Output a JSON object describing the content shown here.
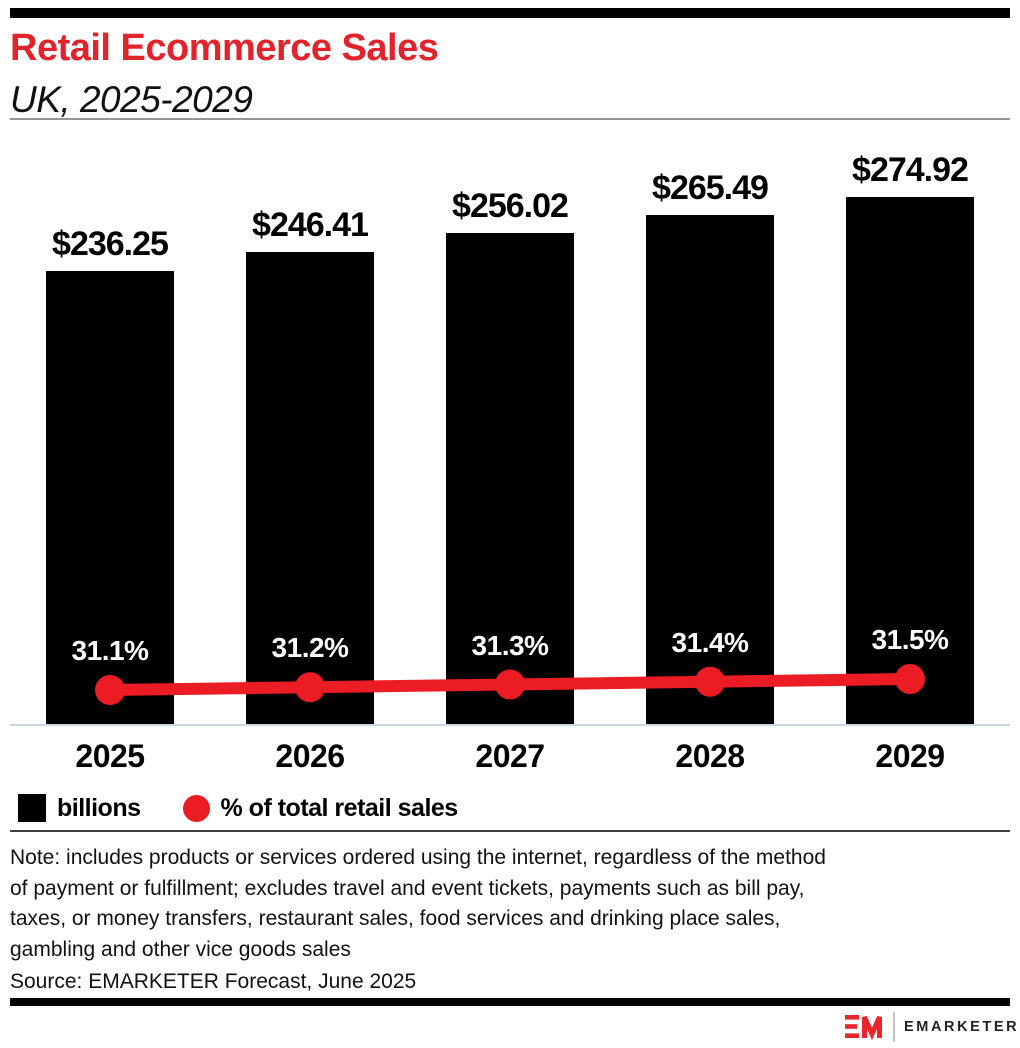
{
  "header": {
    "title": "Retail Ecommerce Sales",
    "subtitle": "UK, 2025-2029",
    "title_color": "#e3232c"
  },
  "chart_data": {
    "type": "bar",
    "title": "Retail Ecommerce Sales",
    "subtitle": "UK, 2025-2029",
    "categories": [
      "2025",
      "2026",
      "2027",
      "2028",
      "2029"
    ],
    "series": [
      {
        "name": "billions",
        "type": "bar",
        "color": "#000000",
        "values": [
          236.25,
          246.41,
          256.02,
          265.49,
          274.92
        ],
        "value_labels": [
          "$236.25",
          "$246.41",
          "$256.02",
          "$265.49",
          "$274.92"
        ]
      },
      {
        "name": "% of total retail sales",
        "type": "line",
        "color": "#ec1c24",
        "values": [
          31.1,
          31.2,
          31.3,
          31.4,
          31.5
        ],
        "value_labels": [
          "31.1%",
          "31.2%",
          "31.3%",
          "31.4%",
          "31.5%"
        ]
      }
    ],
    "value_axis_visible": false,
    "grid": false,
    "legend_position": "bottom"
  },
  "legend": {
    "items": [
      {
        "label": "billions",
        "swatch": "square",
        "color": "#000000"
      },
      {
        "label": "% of total retail sales",
        "swatch": "circle",
        "color": "#ec1c24"
      }
    ]
  },
  "note": {
    "lines": [
      "Note: includes products or services ordered using the internet, regardless of the method",
      "of payment or fulfillment; excludes travel and event tickets, payments such as bill pay,",
      "taxes, or money transfers, restaurant sales, food services and drinking place sales,",
      "gambling and other vice goods sales"
    ],
    "full_text": "Note: includes products or services ordered using the internet, regardless of the method of payment or fulfillment; excludes travel and event tickets, payments such as bill pay, taxes, or money transfers, restaurant sales, food services and drinking place sales, gambling and other vice goods sales"
  },
  "source": "Source: EMARKETER Forecast, June 2025",
  "footer": {
    "brand_name": "EMARKETER",
    "brand_red": "#e8252a"
  }
}
